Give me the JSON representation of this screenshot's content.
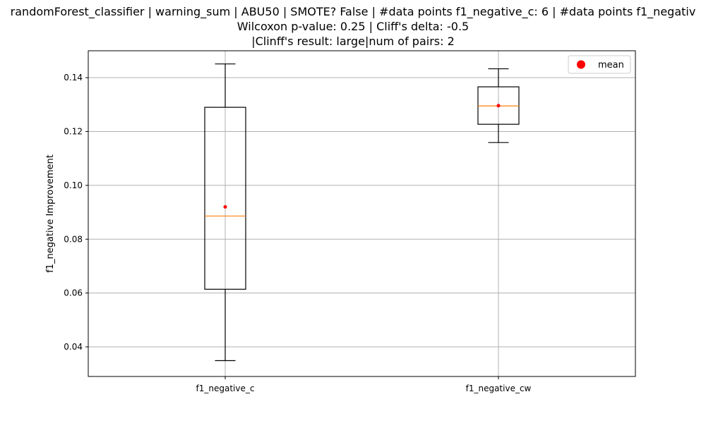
{
  "chart_data": {
    "type": "box",
    "title_lines": [
      "randomForest_classifier | warning_sum | ABU50 | SMOTE? False | #data points f1_negative_c: 6 | #data points f1_negativ",
      "Wilcoxon p-value: 0.25 | Cliff's delta: -0.5",
      "|Clinff's result: large|num of pairs: 2"
    ],
    "ylabel": "f1_negative Improvement",
    "ylim": [
      0.029,
      0.15
    ],
    "yticks": [
      0.04,
      0.06,
      0.08,
      0.1,
      0.12,
      0.14
    ],
    "ytick_labels": [
      "0.04",
      "0.06",
      "0.08",
      "0.10",
      "0.12",
      "0.14"
    ],
    "grid": true,
    "legend": {
      "placement": "top-right",
      "entries": [
        {
          "label": "mean",
          "color": "#ff0000",
          "marker": "circle"
        }
      ]
    },
    "categories": [
      "f1_negative_c",
      "f1_negative_cw"
    ],
    "boxes": [
      {
        "category": "f1_negative_c",
        "whisker_low": 0.0349,
        "q1": 0.0614,
        "median": 0.0886,
        "q3": 0.129,
        "whisker_high": 0.1451,
        "mean": 0.092
      },
      {
        "category": "f1_negative_cw",
        "whisker_low": 0.1159,
        "q1": 0.1227,
        "median": 0.1295,
        "q3": 0.1366,
        "whisker_high": 0.1433,
        "mean": 0.1296
      }
    ],
    "colors": {
      "box": "#000000",
      "median": "#ff7f0e",
      "mean": "#ff0000",
      "grid": "#b0b0b0"
    }
  }
}
